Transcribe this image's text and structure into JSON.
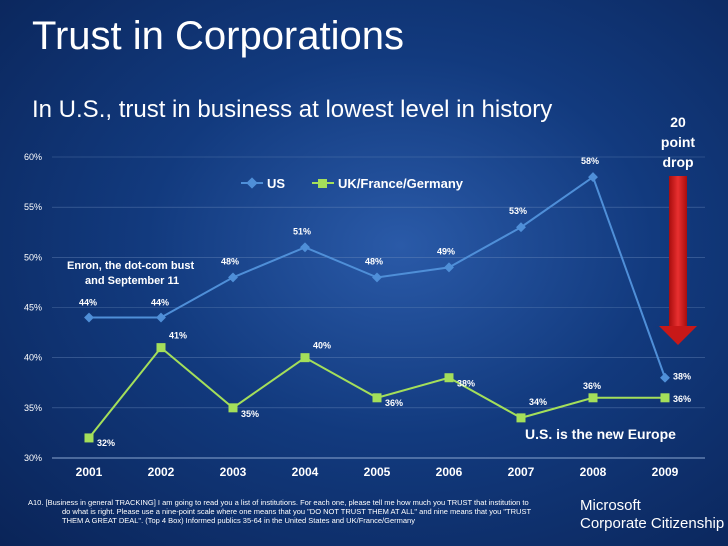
{
  "header": {
    "title": "Trust in Corporations",
    "subtitle": "In U.S., trust in business at lowest level in history"
  },
  "drop_callout": {
    "lines": [
      "20",
      "point",
      "drop"
    ]
  },
  "footnote": {
    "line1": "A10. [Business in general TRACKING] I am going to read you a list of institutions.  For each one, please tell me how much you TRUST that institution to",
    "line2": "do what is right.  Please use a nine-point scale where one means that you \"DO NOT TRUST THEM AT ALL\" and nine means that you \"TRUST",
    "line3": "THEM A GREAT DEAL\".  (Top 4 Box) Informed publics 35-64 in the United States and UK/France/Germany"
  },
  "brand": {
    "line1": "Microsoft",
    "line2": "Corporate Citizenship"
  },
  "colors": {
    "us": "#4f8fd8",
    "uk": "#a4df5a",
    "arrow": "#d42020",
    "grid": "#6f8fc0"
  },
  "chart_data": {
    "type": "line",
    "categories": [
      "2001",
      "2002",
      "2003",
      "2004",
      "2005",
      "2006",
      "2007",
      "2008",
      "2009"
    ],
    "series": [
      {
        "name": "US",
        "marker": "diamond",
        "values": [
          44,
          44,
          48,
          51,
          48,
          49,
          53,
          58,
          38
        ],
        "labels": [
          "44%",
          "44%",
          "48%",
          "51%",
          "48%",
          "49%",
          "53%",
          "58%",
          "38%"
        ]
      },
      {
        "name": "UK/France/Germany",
        "marker": "square",
        "values": [
          32,
          41,
          35,
          40,
          36,
          38,
          34,
          36,
          36
        ],
        "labels": [
          "32%",
          "41%",
          "35%",
          "40%",
          "36%",
          "38%",
          "34%",
          "36%",
          "36%"
        ]
      }
    ],
    "ylim": [
      30,
      60
    ],
    "yticks": [
      "30%",
      "35%",
      "40%",
      "45%",
      "50%",
      "55%",
      "60%"
    ],
    "legend_position": "top",
    "annotations": {
      "enron_line1": "Enron, the dot-com bust",
      "enron_line2": "and September 11",
      "europe": "U.S. is the new Europe"
    }
  }
}
